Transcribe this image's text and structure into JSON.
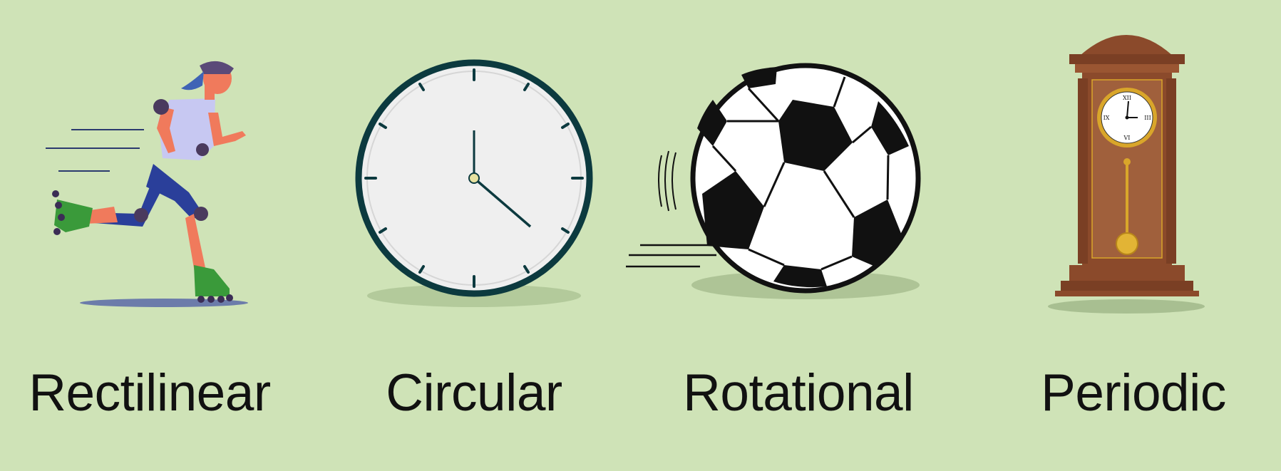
{
  "colors": {
    "background": "#cfe3b7",
    "clock_rim": "#0c3a3f",
    "clock_face": "#efefef",
    "ball_black": "#111111",
    "wood": "#8b4a2b",
    "gold": "#d9a62a",
    "runner_skin": "#f07a5c",
    "runner_shirt": "#c7c8f2",
    "runner_pants": "#2a3f9a",
    "skate_green": "#3a9a3a"
  },
  "panels": [
    {
      "label": "Rectilinear",
      "illustration": "inline-skater-icon"
    },
    {
      "label": "Circular",
      "illustration": "wall-clock-icon"
    },
    {
      "label": "Rotational",
      "illustration": "soccer-ball-icon"
    },
    {
      "label": "Periodic",
      "illustration": "pendulum-clock-icon"
    }
  ]
}
